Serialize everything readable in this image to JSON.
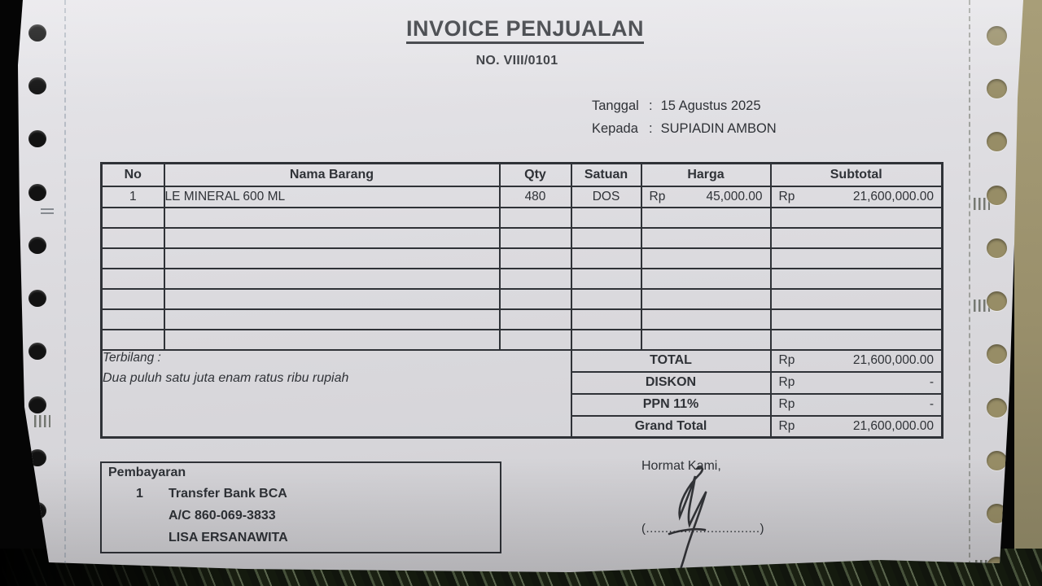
{
  "document": {
    "title": "INVOICE PENJUALAN",
    "number": "NO. VIII/0101",
    "date_label": "Tanggal",
    "separator": ":",
    "date_value": "15 Agustus 2025",
    "recipient_label": "Kepada",
    "recipient_value": "SUPIADIN AMBON"
  },
  "items_table": {
    "headers": {
      "no": "No",
      "name": "Nama Barang",
      "qty": "Qty",
      "unit": "Satuan",
      "price": "Harga",
      "subtotal": "Subtotal"
    },
    "rows": [
      {
        "no": "1",
        "name": "LE MINERAL 600 ML",
        "qty": "480",
        "unit": "DOS",
        "price_currency": "Rp",
        "price": "45,000.00",
        "subtotal_currency": "Rp",
        "subtotal": "21,600,000.00"
      }
    ],
    "empty_row_count": 7
  },
  "terbilang": {
    "label": "Terbilang :",
    "text": "Dua puluh satu juta enam ratus ribu rupiah"
  },
  "totals": [
    {
      "label": "TOTAL",
      "currency": "Rp",
      "value": "21,600,000.00"
    },
    {
      "label": "DISKON",
      "currency": "Rp",
      "value": "-"
    },
    {
      "label": "PPN 11%",
      "currency": "Rp",
      "value": "-"
    },
    {
      "label": "Grand Total",
      "currency": "Rp",
      "value": "21,600,000.00"
    }
  ],
  "payment": {
    "title": "Pembayaran",
    "method_no": "1",
    "method": "Transfer Bank BCA",
    "account": "A/C 860-069-3833",
    "account_name": "LISA ERSANAWITA"
  },
  "signature": {
    "label": "Hormat Kami,",
    "line": "(..............................)"
  },
  "colors": {
    "ink": "#2f3237",
    "paper": "#dcdbdf"
  }
}
